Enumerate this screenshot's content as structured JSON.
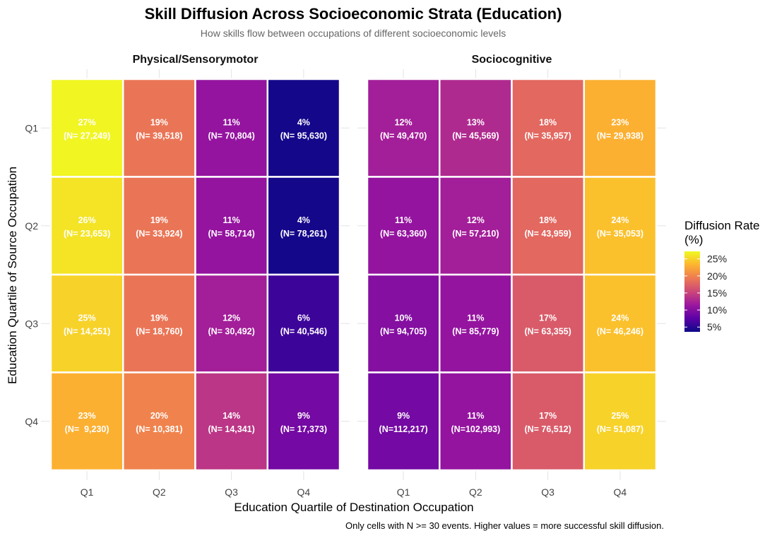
{
  "chart_data": {
    "type": "heatmap",
    "title": "Skill Diffusion Across Socioeconomic Strata (Education)",
    "subtitle": "How skills flow between occupations of different socioeconomic levels",
    "xlabel": "Education Quartile of Destination Occupation",
    "ylabel": "Education Quartile of Source Occupation",
    "caption": "Only cells with N >= 30 events. Higher values = more successful skill diffusion.",
    "x_categories": [
      "Q1",
      "Q2",
      "Q3",
      "Q4"
    ],
    "y_categories": [
      "Q1",
      "Q2",
      "Q3",
      "Q4"
    ],
    "legend": {
      "title_lines": [
        "Diffusion Rate",
        "(%)"
      ],
      "min": 3.6,
      "max": 27.2,
      "ticks": [
        5,
        10,
        15,
        20,
        25
      ],
      "tick_labels": [
        "5%",
        "10%",
        "15%",
        "20%",
        "25%"
      ],
      "palette": [
        "#0d0887",
        "#5c01a6",
        "#9c179e",
        "#cc4778",
        "#ed7953",
        "#fdb42f",
        "#f0f921"
      ],
      "palette_range": [
        3.6,
        27.2
      ],
      "colorbar_note": "plasma, truncated at top"
    },
    "facets": [
      {
        "name": "Physical/Sensorymotor",
        "cells": [
          {
            "y": "Q1",
            "x": "Q1",
            "rate": 27,
            "rate_label": "27%",
            "n_label": "(N= 27,249)"
          },
          {
            "y": "Q1",
            "x": "Q2",
            "rate": 19,
            "rate_label": "19%",
            "n_label": "(N= 39,518)"
          },
          {
            "y": "Q1",
            "x": "Q3",
            "rate": 11,
            "rate_label": "11%",
            "n_label": "(N= 70,804)"
          },
          {
            "y": "Q1",
            "x": "Q4",
            "rate": 4,
            "rate_label": "4%",
            "n_label": "(N= 95,630)"
          },
          {
            "y": "Q2",
            "x": "Q1",
            "rate": 26,
            "rate_label": "26%",
            "n_label": "(N= 23,653)"
          },
          {
            "y": "Q2",
            "x": "Q2",
            "rate": 19,
            "rate_label": "19%",
            "n_label": "(N= 33,924)"
          },
          {
            "y": "Q2",
            "x": "Q3",
            "rate": 11,
            "rate_label": "11%",
            "n_label": "(N= 58,714)"
          },
          {
            "y": "Q2",
            "x": "Q4",
            "rate": 4,
            "rate_label": "4%",
            "n_label": "(N= 78,261)"
          },
          {
            "y": "Q3",
            "x": "Q1",
            "rate": 25,
            "rate_label": "25%",
            "n_label": "(N= 14,251)"
          },
          {
            "y": "Q3",
            "x": "Q2",
            "rate": 19,
            "rate_label": "19%",
            "n_label": "(N= 18,760)"
          },
          {
            "y": "Q3",
            "x": "Q3",
            "rate": 12,
            "rate_label": "12%",
            "n_label": "(N= 30,492)"
          },
          {
            "y": "Q3",
            "x": "Q4",
            "rate": 6,
            "rate_label": "6%",
            "n_label": "(N= 40,546)"
          },
          {
            "y": "Q4",
            "x": "Q1",
            "rate": 23,
            "rate_label": "23%",
            "n_label": "(N=  9,230)"
          },
          {
            "y": "Q4",
            "x": "Q2",
            "rate": 20,
            "rate_label": "20%",
            "n_label": "(N= 10,381)"
          },
          {
            "y": "Q4",
            "x": "Q3",
            "rate": 14,
            "rate_label": "14%",
            "n_label": "(N= 14,341)"
          },
          {
            "y": "Q4",
            "x": "Q4",
            "rate": 9,
            "rate_label": "9%",
            "n_label": "(N= 17,373)"
          }
        ]
      },
      {
        "name": "Sociocognitive",
        "cells": [
          {
            "y": "Q1",
            "x": "Q1",
            "rate": 12,
            "rate_label": "12%",
            "n_label": "(N= 49,470)"
          },
          {
            "y": "Q1",
            "x": "Q2",
            "rate": 13,
            "rate_label": "13%",
            "n_label": "(N= 45,569)"
          },
          {
            "y": "Q1",
            "x": "Q3",
            "rate": 18,
            "rate_label": "18%",
            "n_label": "(N= 35,957)"
          },
          {
            "y": "Q1",
            "x": "Q4",
            "rate": 23,
            "rate_label": "23%",
            "n_label": "(N= 29,938)"
          },
          {
            "y": "Q2",
            "x": "Q1",
            "rate": 11,
            "rate_label": "11%",
            "n_label": "(N= 63,360)"
          },
          {
            "y": "Q2",
            "x": "Q2",
            "rate": 12,
            "rate_label": "12%",
            "n_label": "(N= 57,210)"
          },
          {
            "y": "Q2",
            "x": "Q3",
            "rate": 18,
            "rate_label": "18%",
            "n_label": "(N= 43,959)"
          },
          {
            "y": "Q2",
            "x": "Q4",
            "rate": 24,
            "rate_label": "24%",
            "n_label": "(N= 35,053)"
          },
          {
            "y": "Q3",
            "x": "Q1",
            "rate": 10,
            "rate_label": "10%",
            "n_label": "(N= 94,705)"
          },
          {
            "y": "Q3",
            "x": "Q2",
            "rate": 11,
            "rate_label": "11%",
            "n_label": "(N= 85,779)"
          },
          {
            "y": "Q3",
            "x": "Q3",
            "rate": 17,
            "rate_label": "17%",
            "n_label": "(N= 63,355)"
          },
          {
            "y": "Q3",
            "x": "Q4",
            "rate": 24,
            "rate_label": "24%",
            "n_label": "(N= 46,246)"
          },
          {
            "y": "Q4",
            "x": "Q1",
            "rate": 9,
            "rate_label": "9%",
            "n_label": "(N=112,217)"
          },
          {
            "y": "Q4",
            "x": "Q2",
            "rate": 11,
            "rate_label": "11%",
            "n_label": "(N=102,993)"
          },
          {
            "y": "Q4",
            "x": "Q3",
            "rate": 17,
            "rate_label": "17%",
            "n_label": "(N= 76,512)"
          },
          {
            "y": "Q4",
            "x": "Q4",
            "rate": 25,
            "rate_label": "25%",
            "n_label": "(N= 51,087)"
          }
        ]
      }
    ]
  }
}
